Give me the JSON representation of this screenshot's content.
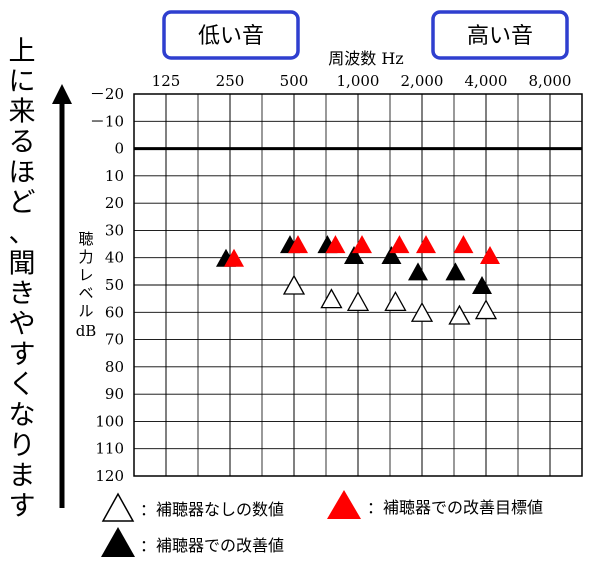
{
  "chart_data": {
    "type": "scatter",
    "title": "",
    "xlabel": "周波数 Hz",
    "ylabel": "聴力レベル dB",
    "x_categories": [
      "125",
      "250",
      "500",
      "1,000",
      "2,000",
      "4,000",
      "8,000"
    ],
    "y_ticks": [
      "－20",
      "－10",
      "0",
      "10",
      "20",
      "30",
      "40",
      "50",
      "60",
      "70",
      "80",
      "90",
      "100",
      "110",
      "120"
    ],
    "ylim": [
      -20,
      120
    ],
    "grid": true,
    "low_label": "低い音",
    "high_label": "高い音",
    "side_note": "上に来るほど、聞きやすくなります",
    "series": [
      {
        "name": "補聴器なしの数値",
        "marker": "hollow-triangle",
        "color": "#ffffff",
        "points": [
          {
            "x": "500",
            "y": 50
          },
          {
            "x": "750",
            "y": 55
          },
          {
            "x": "1,000",
            "y": 56
          },
          {
            "x": "1,500",
            "y": 56
          },
          {
            "x": "2,000",
            "y": 60
          },
          {
            "x": "3,000",
            "y": 61
          },
          {
            "x": "4,000",
            "y": 59
          }
        ]
      },
      {
        "name": "補聴器での改善目標値",
        "marker": "filled-triangle",
        "color": "#ff0000",
        "points": [
          {
            "x": "250",
            "y": 40
          },
          {
            "x": "500",
            "y": 35
          },
          {
            "x": "750",
            "y": 35
          },
          {
            "x": "1,000",
            "y": 35
          },
          {
            "x": "1,500",
            "y": 35
          },
          {
            "x": "2,000",
            "y": 35
          },
          {
            "x": "3,000",
            "y": 35
          },
          {
            "x": "4,000",
            "y": 39
          }
        ]
      },
      {
        "name": "補聴器での改善値",
        "marker": "filled-triangle",
        "color": "#000000",
        "points": [
          {
            "x": "250",
            "y": 40
          },
          {
            "x": "500",
            "y": 35
          },
          {
            "x": "750",
            "y": 35
          },
          {
            "x": "1,000",
            "y": 39
          },
          {
            "x": "1,500",
            "y": 39
          },
          {
            "x": "2,000",
            "y": 45
          },
          {
            "x": "3,000",
            "y": 45
          },
          {
            "x": "4,000",
            "y": 50
          }
        ]
      }
    ]
  }
}
